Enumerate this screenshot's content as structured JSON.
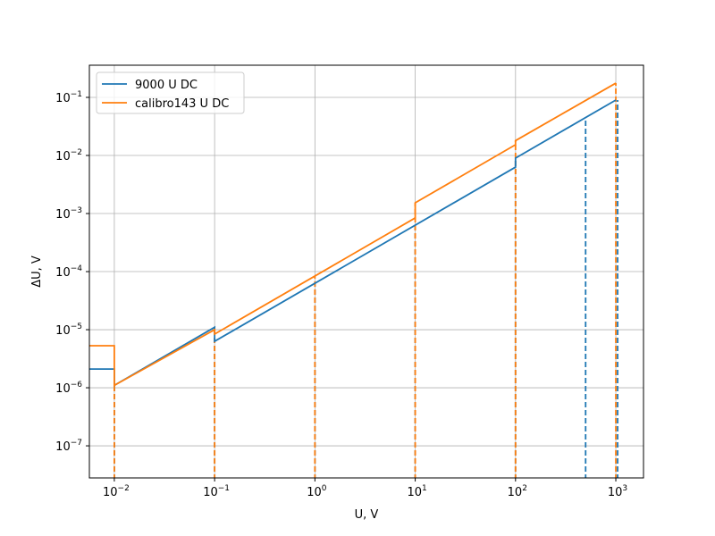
{
  "chart_data": {
    "type": "line",
    "x_label": "U, V",
    "y_label": "ΔU, V",
    "xscale": "log",
    "yscale": "log",
    "grid": true,
    "legend": "upper left",
    "xlim": [
      0.00564,
      1888
    ],
    "ylim": [
      2.8e-08,
      0.358
    ],
    "xticks": [
      {
        "value": 0.01,
        "label": "10",
        "exponent": "−2"
      },
      {
        "value": 0.1,
        "label": "10",
        "exponent": "−1"
      },
      {
        "value": 1,
        "label": "10",
        "exponent": "0"
      },
      {
        "value": 10,
        "label": "10",
        "exponent": "1"
      },
      {
        "value": 100,
        "label": "10",
        "exponent": "2"
      },
      {
        "value": 1000,
        "label": "10",
        "exponent": "3"
      }
    ],
    "yticks": [
      {
        "value": 1e-07,
        "label": "10",
        "exponent": "−7"
      },
      {
        "value": 1e-06,
        "label": "10",
        "exponent": "−6"
      },
      {
        "value": 1e-05,
        "label": "10",
        "exponent": "−5"
      },
      {
        "value": 0.0001,
        "label": "10",
        "exponent": "−4"
      },
      {
        "value": 0.001,
        "label": "10",
        "exponent": "−3"
      },
      {
        "value": 0.01,
        "label": "10",
        "exponent": "−2"
      },
      {
        "value": 0.1,
        "label": "10",
        "exponent": "−1"
      }
    ],
    "series": [
      {
        "name": "9000 U DC",
        "color": "#1f77b4",
        "x": [
          0.00564,
          0.01,
          0.01,
          0.1,
          0.1,
          100,
          100,
          1000
        ],
        "values": [
          2.1e-06,
          2.1e-06,
          1.1e-06,
          1.1e-05,
          6.3e-06,
          0.0063,
          0.009,
          0.09
        ],
        "dashed_x": [
          0.01,
          0.1,
          1,
          10,
          100,
          500,
          1042
        ],
        "dashed_values": [
          1.1e-06,
          1.1e-05,
          6.3e-05,
          0.00063,
          0.009,
          0.045,
          0.09
        ]
      },
      {
        "name": "calibro143 U DC",
        "color": "#ff7f0e",
        "x": [
          0.00564,
          0.01,
          0.01,
          0.1,
          0.1,
          10,
          10,
          100,
          100,
          1000
        ],
        "values": [
          5.3e-06,
          5.3e-06,
          1.1e-06,
          1e-05,
          8.4e-06,
          0.00084,
          0.00153,
          0.0153,
          0.018,
          0.176
        ],
        "dashed_x": [
          0.01,
          0.1,
          1,
          10,
          100,
          1000
        ],
        "dashed_values": [
          1.1e-06,
          1e-05,
          8.4e-05,
          0.00153,
          0.018,
          0.176
        ]
      }
    ]
  }
}
